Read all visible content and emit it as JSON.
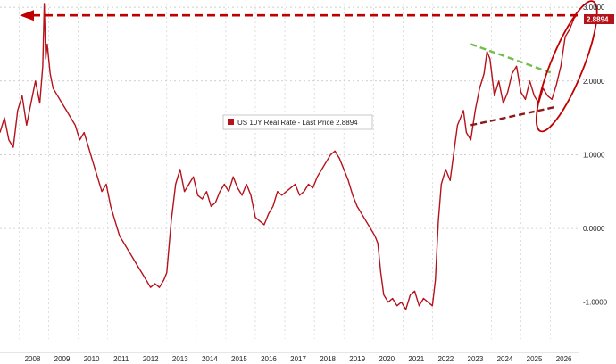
{
  "chart_data": {
    "type": "line",
    "legend": {
      "label": "US 10Y Real Rate - Last Price 2.8894",
      "placement": "center-left"
    },
    "last_price_label": "2.8894",
    "x_ticks": [
      "2008",
      "2009",
      "2010",
      "2011",
      "2012",
      "2013",
      "2014",
      "2015",
      "2016",
      "2017",
      "2018",
      "2019",
      "2020",
      "2021",
      "2022",
      "2023",
      "2024",
      "2025",
      "2026"
    ],
    "y_ticks": [
      "3.0000",
      "2.0000",
      "1.0000",
      "0.0000",
      "-1.0000"
    ],
    "ylim": [
      -1.5,
      3.05
    ],
    "xlim": [
      2007.35,
      2026.95
    ],
    "grid": true,
    "colors": {
      "series": "#b5121b",
      "annotation": "#c00000",
      "green_trend": "#6fbf4b",
      "brown_trend": "#8b1a1a",
      "legend_swatch": "#b5121b"
    },
    "series": [
      {
        "x": [
          2007.35,
          2007.5,
          2007.65,
          2007.8,
          2007.95,
          2008.1,
          2008.25,
          2008.4,
          2008.55,
          2008.7,
          2008.8,
          2008.85,
          2008.9,
          2008.95,
          2009.05,
          2009.15,
          2009.3,
          2009.45,
          2009.6,
          2009.75,
          2009.9,
          2010.05,
          2010.2,
          2010.35,
          2010.5,
          2010.65,
          2010.8,
          2010.95,
          2011.1,
          2011.25,
          2011.4,
          2011.55,
          2011.7,
          2011.85,
          2012.0,
          2012.15,
          2012.3,
          2012.45,
          2012.6,
          2012.75,
          2012.9,
          2013.0,
          2013.15,
          2013.3,
          2013.45,
          2013.6,
          2013.75,
          2013.9,
          2014.05,
          2014.2,
          2014.35,
          2014.5,
          2014.65,
          2014.8,
          2014.95,
          2015.1,
          2015.25,
          2015.4,
          2015.55,
          2015.7,
          2015.85,
          2016.0,
          2016.15,
          2016.3,
          2016.45,
          2016.6,
          2016.75,
          2016.9,
          2017.05,
          2017.2,
          2017.35,
          2017.5,
          2017.65,
          2017.8,
          2017.95,
          2018.1,
          2018.25,
          2018.4,
          2018.55,
          2018.7,
          2018.85,
          2019.0,
          2019.15,
          2019.3,
          2019.45,
          2019.6,
          2019.75,
          2019.9,
          2020.05,
          2020.15,
          2020.25,
          2020.35,
          2020.5,
          2020.65,
          2020.8,
          2020.95,
          2021.1,
          2021.25,
          2021.4,
          2021.55,
          2021.7,
          2021.85,
          2022.0,
          2022.1,
          2022.2,
          2022.3,
          2022.45,
          2022.6,
          2022.75,
          2022.85,
          2022.95,
          2023.05,
          2023.15,
          2023.3,
          2023.45,
          2023.6,
          2023.75,
          2023.85,
          2023.95,
          2024.1,
          2024.25,
          2024.4,
          2024.55,
          2024.7,
          2024.85,
          2025.0,
          2025.15,
          2025.3,
          2025.45,
          2025.6,
          2025.75,
          2025.9,
          2026.05,
          2026.2,
          2026.35,
          2026.5,
          2026.65,
          2026.8,
          2026.9
        ],
        "values": [
          1.3,
          1.5,
          1.2,
          1.1,
          1.6,
          1.8,
          1.4,
          1.7,
          2.0,
          1.7,
          2.2,
          3.05,
          2.3,
          2.5,
          2.1,
          1.9,
          1.8,
          1.7,
          1.6,
          1.5,
          1.4,
          1.2,
          1.3,
          1.1,
          0.9,
          0.7,
          0.5,
          0.6,
          0.3,
          0.1,
          -0.1,
          -0.2,
          -0.3,
          -0.4,
          -0.5,
          -0.6,
          -0.7,
          -0.8,
          -0.75,
          -0.8,
          -0.7,
          -0.6,
          0.1,
          0.6,
          0.8,
          0.5,
          0.6,
          0.7,
          0.45,
          0.4,
          0.5,
          0.3,
          0.35,
          0.5,
          0.6,
          0.5,
          0.7,
          0.55,
          0.45,
          0.6,
          0.45,
          0.15,
          0.1,
          0.05,
          0.2,
          0.3,
          0.5,
          0.45,
          0.5,
          0.55,
          0.6,
          0.45,
          0.5,
          0.6,
          0.55,
          0.7,
          0.8,
          0.9,
          1.0,
          1.05,
          0.95,
          0.8,
          0.65,
          0.45,
          0.3,
          0.2,
          0.1,
          0.0,
          -0.1,
          -0.2,
          -0.6,
          -0.9,
          -1.0,
          -0.95,
          -1.05,
          -1.0,
          -1.1,
          -0.9,
          -0.85,
          -1.05,
          -0.95,
          -1.0,
          -1.05,
          -0.7,
          0.1,
          0.6,
          0.8,
          0.65,
          1.1,
          1.4,
          1.5,
          1.6,
          1.3,
          1.2,
          1.6,
          1.9,
          2.1,
          2.4,
          2.3,
          1.8,
          2.0,
          1.7,
          1.85,
          2.1,
          2.2,
          1.85,
          1.75,
          2.0,
          1.8,
          1.7,
          1.9,
          1.8,
          1.75,
          1.95,
          2.2,
          2.6,
          2.7,
          2.85,
          2.9
        ]
      }
    ],
    "annotations": {
      "dashed_line_level": 2.89,
      "green_trend": {
        "x": [
          2023.3,
          2026.1
        ],
        "y": [
          2.5,
          2.1
        ]
      },
      "brown_trend": {
        "x": [
          2023.3,
          2026.2
        ],
        "y": [
          1.4,
          1.65
        ]
      },
      "ellipse_center": {
        "x": 2026.55,
        "y": 2.2
      },
      "ellipse_radius": {
        "x": 0.55,
        "y": 0.95
      }
    }
  }
}
